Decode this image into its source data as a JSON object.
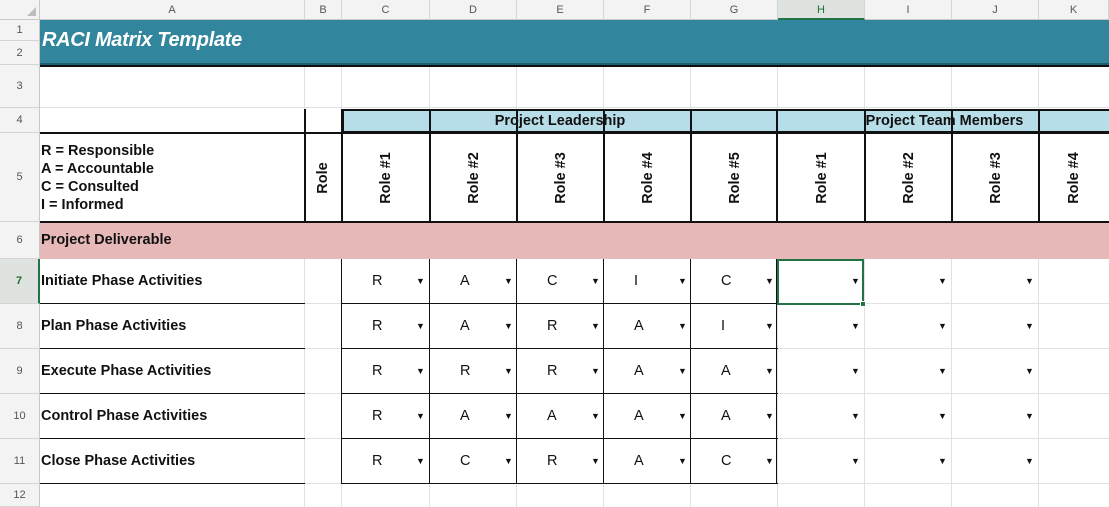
{
  "sheet": {
    "columns": [
      "A",
      "B",
      "C",
      "D",
      "E",
      "F",
      "G",
      "H",
      "I",
      "J",
      "K"
    ],
    "selected_column": "H",
    "rows": [
      "1",
      "2",
      "3",
      "4",
      "5",
      "6",
      "7",
      "8",
      "9",
      "10",
      "11",
      "12"
    ],
    "selected_row": "7"
  },
  "title": "RACI Matrix Template",
  "groups": {
    "leadership": "Project Leadership",
    "team": "Project Team Members"
  },
  "legend": [
    "R = Responsible",
    "A = Accountable",
    "C = Consulted",
    "I = Informed"
  ],
  "role_header": "Role",
  "leadership_roles": [
    "Role #1",
    "Role #2",
    "Role #3",
    "Role #4",
    "Role #5"
  ],
  "team_roles": [
    "Role #1",
    "Role #2",
    "Role #3",
    "Role #4"
  ],
  "section_label": "Project Deliverable",
  "dropdown_arrow": "▼",
  "activities": [
    {
      "label": "Initiate Phase Activities",
      "values": [
        "R",
        "A",
        "C",
        "I",
        "C"
      ]
    },
    {
      "label": "Plan Phase Activities",
      "values": [
        "R",
        "A",
        "R",
        "A",
        "I"
      ]
    },
    {
      "label": "Execute Phase Activities",
      "values": [
        "R",
        "R",
        "R",
        "A",
        "A"
      ]
    },
    {
      "label": "Control Phase Activities",
      "values": [
        "R",
        "A",
        "A",
        "A",
        "A"
      ]
    },
    {
      "label": "Close Phase Activities",
      "values": [
        "R",
        "C",
        "R",
        "A",
        "C"
      ]
    }
  ],
  "colors": {
    "title_band": "#31859c",
    "group_header": "#b7dde8",
    "section_band": "#e6b8b7",
    "selection": "#217346"
  }
}
